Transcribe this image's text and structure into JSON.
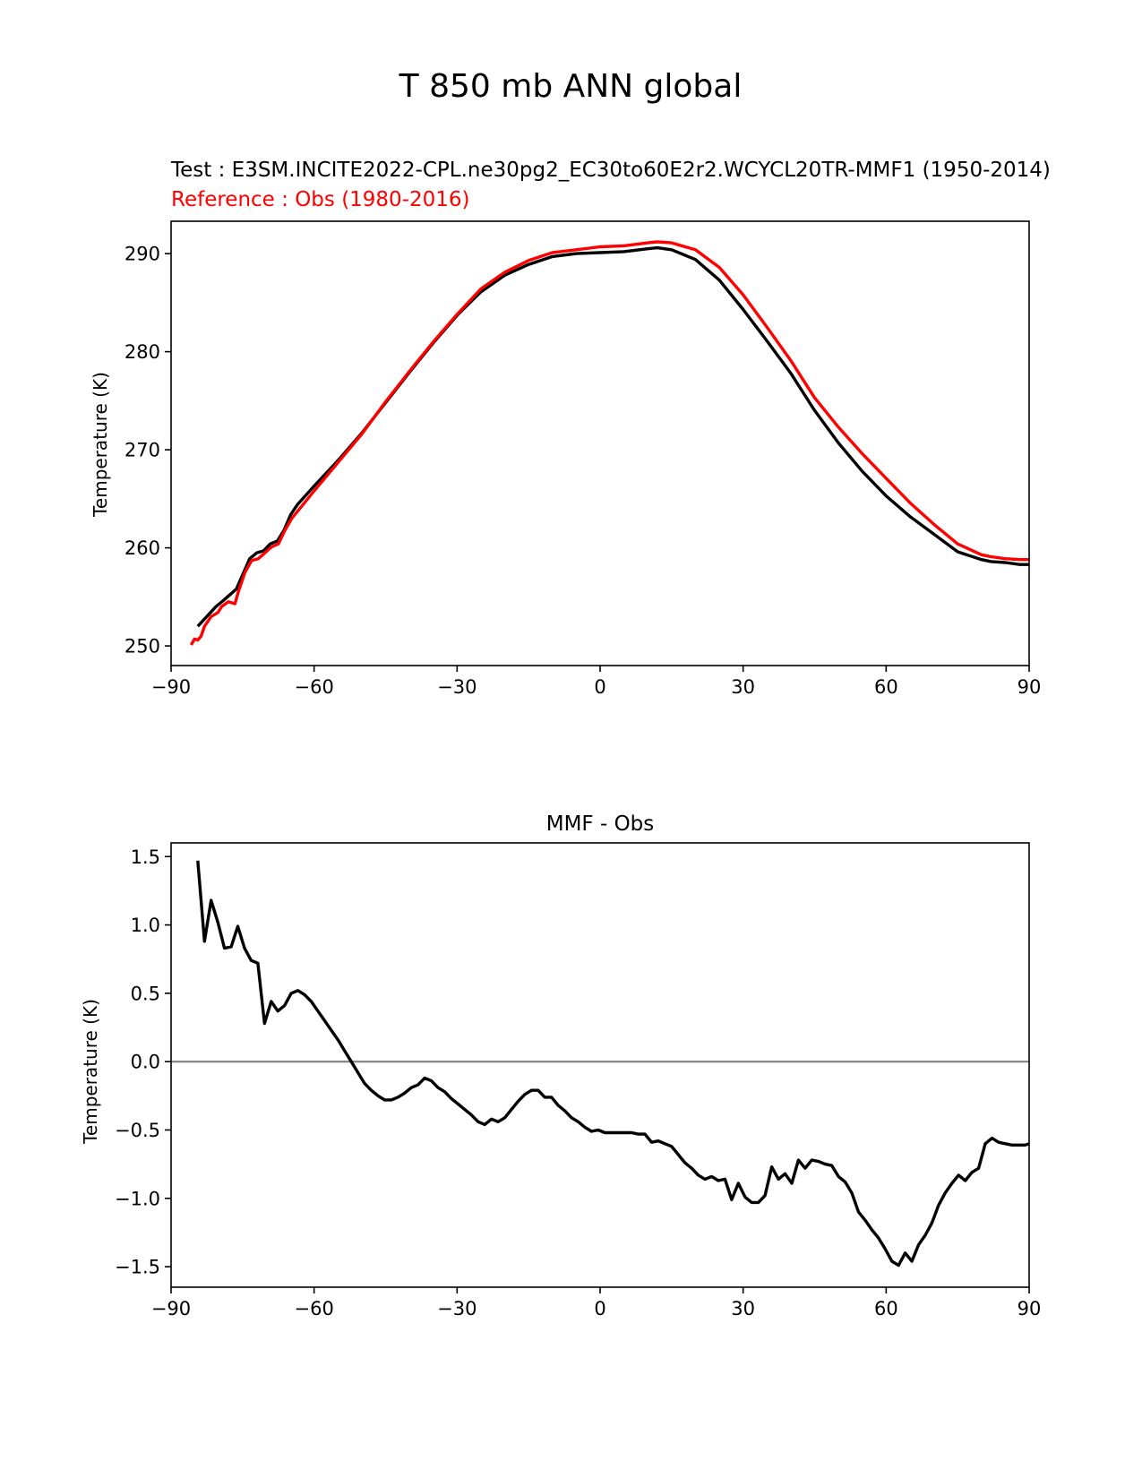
{
  "figure": {
    "suptitle": "T 850 mb ANN global"
  },
  "colors": {
    "test": "#000000",
    "reference": "#ff0000",
    "zero_line": "#808080",
    "axis": "#000000"
  },
  "chart_data": [
    {
      "type": "line",
      "title_test": "Test : E3SM.INCITE2022-CPL.ne30pg2_EC30to60E2r2.WCYCL20TR-MMF1 (1950-2014)",
      "title_reference": "Reference : Obs (1980-2016)",
      "xlabel": "",
      "ylabel": "Temperature (K)",
      "xlim": [
        -90,
        90
      ],
      "ylim": [
        248,
        293.3
      ],
      "xticks": [
        -90,
        -60,
        -30,
        0,
        30,
        60,
        90
      ],
      "xtick_labels": [
        "−90",
        "−60",
        "−30",
        "0",
        "30",
        "60",
        "90"
      ],
      "yticks": [
        250,
        260,
        270,
        280,
        290
      ],
      "ytick_labels": [
        "250",
        "260",
        "270",
        "280",
        "290"
      ],
      "series": [
        {
          "name": "Test",
          "color": "#000000",
          "x": [
            -84.4,
            -80.6,
            -79.1,
            -76.3,
            -73.5,
            -72.0,
            -70.6,
            -69.2,
            -67.7,
            -66.3,
            -64.9,
            -63.5,
            -60.0,
            -55.0,
            -50.0,
            -45.0,
            -40.0,
            -35.0,
            -30.0,
            -25.0,
            -20.0,
            -15.0,
            -10.0,
            -5.0,
            0.0,
            5.0,
            10.0,
            12.0,
            15.0,
            20.0,
            25.0,
            30.0,
            35.0,
            40.0,
            45.0,
            50.0,
            55.0,
            60.0,
            65.0,
            70.0,
            75.0,
            80.0,
            82.0,
            85.0,
            88.0,
            90.0
          ],
          "values": [
            252.0,
            254.0,
            254.6,
            255.8,
            258.9,
            259.5,
            259.7,
            260.4,
            260.7,
            261.8,
            263.4,
            264.4,
            266.3,
            268.9,
            271.7,
            274.8,
            277.9,
            280.9,
            283.7,
            286.1,
            287.8,
            288.9,
            289.7,
            290.0,
            290.1,
            290.2,
            290.5,
            290.6,
            290.4,
            289.4,
            287.3,
            284.3,
            281.1,
            277.8,
            274.0,
            270.7,
            267.8,
            265.3,
            263.2,
            261.4,
            259.6,
            258.8,
            258.6,
            258.5,
            258.3,
            258.3
          ]
        },
        {
          "name": "Reference",
          "color": "#ff0000",
          "x": [
            -85.8,
            -85.1,
            -84.4,
            -83.7,
            -83.0,
            -81.6,
            -80.2,
            -79.4,
            -78.0,
            -76.6,
            -75.9,
            -74.5,
            -73.1,
            -71.7,
            -70.3,
            -68.9,
            -67.5,
            -66.1,
            -64.7,
            -60.0,
            -55.0,
            -50.0,
            -45.0,
            -40.0,
            -35.0,
            -30.0,
            -25.0,
            -20.0,
            -15.0,
            -10.0,
            -5.0,
            0.0,
            5.0,
            10.0,
            12.0,
            15.0,
            20.0,
            25.0,
            30.0,
            35.0,
            40.0,
            45.0,
            50.0,
            55.0,
            60.0,
            65.0,
            70.0,
            75.0,
            80.0,
            82.0,
            85.0,
            88.0,
            90.0
          ],
          "values": [
            250.1,
            250.7,
            250.6,
            251.0,
            252.0,
            253.0,
            253.4,
            254.0,
            254.5,
            254.3,
            255.5,
            257.5,
            258.7,
            258.9,
            259.5,
            260.1,
            260.4,
            261.8,
            263.0,
            265.8,
            268.7,
            271.6,
            274.9,
            278.0,
            281.0,
            283.8,
            286.4,
            288.1,
            289.3,
            290.1,
            290.4,
            290.7,
            290.8,
            291.1,
            291.2,
            291.1,
            290.4,
            288.6,
            285.8,
            282.5,
            279.1,
            275.3,
            272.3,
            269.6,
            267.1,
            264.6,
            262.4,
            260.4,
            259.3,
            259.1,
            258.9,
            258.8,
            258.8
          ]
        }
      ]
    },
    {
      "type": "line",
      "title": "MMF - Obs",
      "xlabel": "",
      "ylabel": "Temperature (K)",
      "xlim": [
        -90,
        90
      ],
      "ylim": [
        -1.65,
        1.6
      ],
      "xticks": [
        -90,
        -60,
        -30,
        0,
        30,
        60,
        90
      ],
      "xtick_labels": [
        "−90",
        "−60",
        "−30",
        "0",
        "30",
        "60",
        "90"
      ],
      "yticks": [
        -1.5,
        -1.0,
        -0.5,
        0.0,
        0.5,
        1.0,
        1.5
      ],
      "ytick_labels": [
        "−1.5",
        "−1.0",
        "−0.5",
        "0.0",
        "0.5",
        "1.0",
        "1.5"
      ],
      "zero_line": 0.0,
      "series": [
        {
          "name": "MMF - Obs",
          "color": "#000000",
          "x": [
            -84.4,
            -83.0,
            -81.6,
            -80.2,
            -78.8,
            -77.4,
            -76.0,
            -74.6,
            -73.2,
            -71.8,
            -70.4,
            -69.0,
            -67.6,
            -66.2,
            -64.8,
            -63.4,
            -62.0,
            -60.6,
            -59.2,
            -57.8,
            -56.4,
            -55.0,
            -53.6,
            -52.2,
            -50.8,
            -49.4,
            -48.0,
            -46.6,
            -45.2,
            -43.8,
            -42.4,
            -41.0,
            -39.6,
            -38.2,
            -36.8,
            -35.4,
            -34.0,
            -32.6,
            -31.2,
            -29.8,
            -28.4,
            -27.0,
            -25.6,
            -24.2,
            -22.8,
            -21.4,
            -20.0,
            -18.6,
            -17.2,
            -15.8,
            -14.4,
            -13.0,
            -11.6,
            -10.2,
            -8.8,
            -7.4,
            -6.0,
            -4.6,
            -3.2,
            -1.8,
            -0.4,
            1.0,
            2.4,
            3.8,
            5.2,
            6.6,
            8.0,
            9.4,
            10.8,
            12.2,
            13.6,
            15.0,
            16.4,
            17.8,
            19.2,
            20.6,
            22.0,
            23.4,
            24.8,
            26.2,
            27.6,
            29.0,
            30.4,
            31.8,
            33.2,
            34.6,
            36.0,
            37.4,
            38.8,
            40.2,
            41.6,
            43.0,
            44.4,
            45.8,
            47.2,
            48.6,
            50.0,
            51.4,
            52.8,
            54.2,
            55.6,
            57.0,
            58.4,
            59.8,
            61.2,
            62.6,
            64.0,
            65.4,
            66.8,
            68.2,
            69.6,
            71.0,
            72.4,
            73.8,
            75.2,
            76.6,
            78.0,
            79.4,
            80.8,
            82.2,
            83.6,
            85.0,
            86.4,
            87.8,
            89.2,
            90.0
          ],
          "values": [
            1.47,
            0.88,
            1.18,
            1.02,
            0.83,
            0.84,
            0.99,
            0.83,
            0.74,
            0.72,
            0.28,
            0.44,
            0.37,
            0.41,
            0.5,
            0.52,
            0.49,
            0.44,
            0.37,
            0.3,
            0.23,
            0.16,
            0.08,
            0.0,
            -0.08,
            -0.16,
            -0.21,
            -0.25,
            -0.28,
            -0.28,
            -0.26,
            -0.23,
            -0.19,
            -0.17,
            -0.12,
            -0.14,
            -0.19,
            -0.22,
            -0.27,
            -0.31,
            -0.35,
            -0.39,
            -0.44,
            -0.46,
            -0.42,
            -0.44,
            -0.41,
            -0.35,
            -0.29,
            -0.24,
            -0.21,
            -0.21,
            -0.26,
            -0.26,
            -0.32,
            -0.36,
            -0.41,
            -0.44,
            -0.48,
            -0.51,
            -0.5,
            -0.52,
            -0.52,
            -0.52,
            -0.52,
            -0.52,
            -0.53,
            -0.53,
            -0.59,
            -0.58,
            -0.6,
            -0.62,
            -0.68,
            -0.74,
            -0.78,
            -0.83,
            -0.86,
            -0.84,
            -0.87,
            -0.86,
            -1.01,
            -0.89,
            -0.99,
            -1.03,
            -1.03,
            -0.98,
            -0.77,
            -0.86,
            -0.82,
            -0.89,
            -0.72,
            -0.78,
            -0.72,
            -0.73,
            -0.75,
            -0.76,
            -0.84,
            -0.88,
            -0.96,
            -1.1,
            -1.16,
            -1.23,
            -1.29,
            -1.37,
            -1.46,
            -1.49,
            -1.4,
            -1.46,
            -1.34,
            -1.27,
            -1.18,
            -1.05,
            -0.96,
            -0.89,
            -0.83,
            -0.87,
            -0.81,
            -0.78,
            -0.6,
            -0.56,
            -0.59,
            -0.6,
            -0.61,
            -0.61,
            -0.61,
            -0.6
          ]
        }
      ]
    }
  ]
}
